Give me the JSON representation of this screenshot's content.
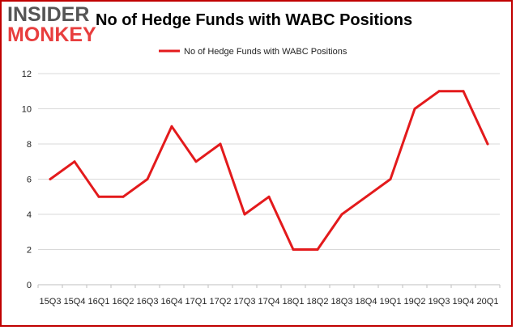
{
  "header": {
    "logo_line1": "INSIDER",
    "logo_line2": "MONKEY",
    "title": "No of Hedge Funds with WABC Positions"
  },
  "colors": {
    "line": "#e31a1c",
    "frame": "#c00000",
    "grid": "#d9d9d9"
  },
  "chart_data": {
    "type": "line",
    "title": "No of Hedge Funds with WABC Positions",
    "xlabel": "",
    "ylabel": "",
    "ylim": [
      0,
      12
    ],
    "yticks": [
      0,
      2,
      4,
      6,
      8,
      10,
      12
    ],
    "grid": true,
    "legend_position": "top-center",
    "categories": [
      "15Q3",
      "15Q4",
      "16Q1",
      "16Q2",
      "16Q3",
      "16Q4",
      "17Q1",
      "17Q2",
      "17Q3",
      "17Q4",
      "18Q1",
      "18Q2",
      "18Q3",
      "18Q4",
      "19Q1",
      "19Q2",
      "19Q3",
      "19Q4",
      "20Q1"
    ],
    "series": [
      {
        "name": "No of Hedge Funds with WABC Positions",
        "values": [
          6,
          7,
          5,
          5,
          6,
          9,
          7,
          8,
          4,
          5,
          2,
          2,
          4,
          5,
          6,
          10,
          11,
          11,
          8
        ]
      }
    ]
  }
}
